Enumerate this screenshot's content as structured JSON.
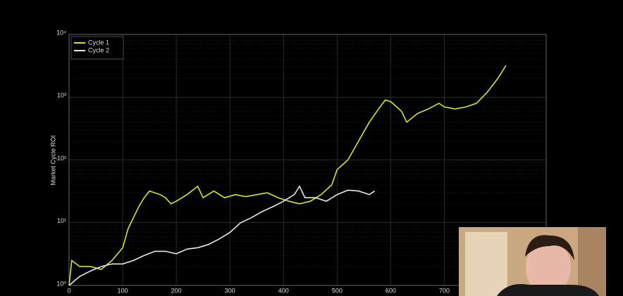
{
  "chart_data": {
    "type": "line",
    "ylabel": "Market Cycle ROI",
    "yscale": "log",
    "grid": true,
    "legend": "upper left",
    "xlim": [
      0,
      890
    ],
    "ylim": [
      1,
      10000
    ],
    "xticks": [
      0,
      100,
      200,
      300,
      400,
      500,
      600,
      700
    ],
    "yticks": [
      {
        "value": 1,
        "label": "10⁰"
      },
      {
        "value": 10,
        "label": "10¹"
      },
      {
        "value": 100,
        "label": "10²"
      },
      {
        "value": 1000,
        "label": "10³"
      },
      {
        "value": 10000,
        "label": "10⁴"
      }
    ],
    "series": [
      {
        "name": "Cycle 1",
        "color": "#d4e62a",
        "x": [
          0,
          5,
          20,
          40,
          60,
          80,
          100,
          110,
          120,
          130,
          140,
          150,
          170,
          180,
          190,
          200,
          220,
          240,
          250,
          270,
          290,
          310,
          330,
          350,
          370,
          390,
          410,
          430,
          450,
          470,
          490,
          500,
          520,
          540,
          560,
          580,
          590,
          600,
          620,
          630,
          650,
          670,
          690,
          700,
          720,
          740,
          760,
          780,
          800,
          815
        ],
        "values": [
          1.0,
          2.5,
          2.0,
          2.0,
          1.8,
          2.5,
          4,
          8,
          12,
          18,
          25,
          32,
          28,
          25,
          20,
          22,
          28,
          38,
          25,
          32,
          25,
          28,
          26,
          28,
          30,
          25,
          22,
          20,
          22,
          28,
          40,
          70,
          100,
          200,
          400,
          700,
          900,
          850,
          600,
          400,
          550,
          650,
          800,
          700,
          650,
          700,
          800,
          1200,
          2000,
          3200
        ]
      },
      {
        "name": "Cycle 2",
        "color": "#e8e8e8",
        "x": [
          0,
          20,
          40,
          60,
          80,
          100,
          120,
          140,
          160,
          180,
          200,
          220,
          240,
          260,
          280,
          300,
          320,
          340,
          360,
          380,
          400,
          420,
          430,
          440,
          460,
          480,
          500,
          520,
          540,
          560,
          570
        ],
        "values": [
          1.0,
          1.4,
          1.7,
          2.0,
          2.2,
          2.2,
          2.5,
          3.0,
          3.5,
          3.5,
          3.2,
          3.8,
          4.0,
          4.5,
          5.5,
          7,
          10,
          12,
          15,
          18,
          22,
          28,
          38,
          25,
          25,
          22,
          28,
          33,
          32,
          28,
          32
        ]
      }
    ]
  }
}
